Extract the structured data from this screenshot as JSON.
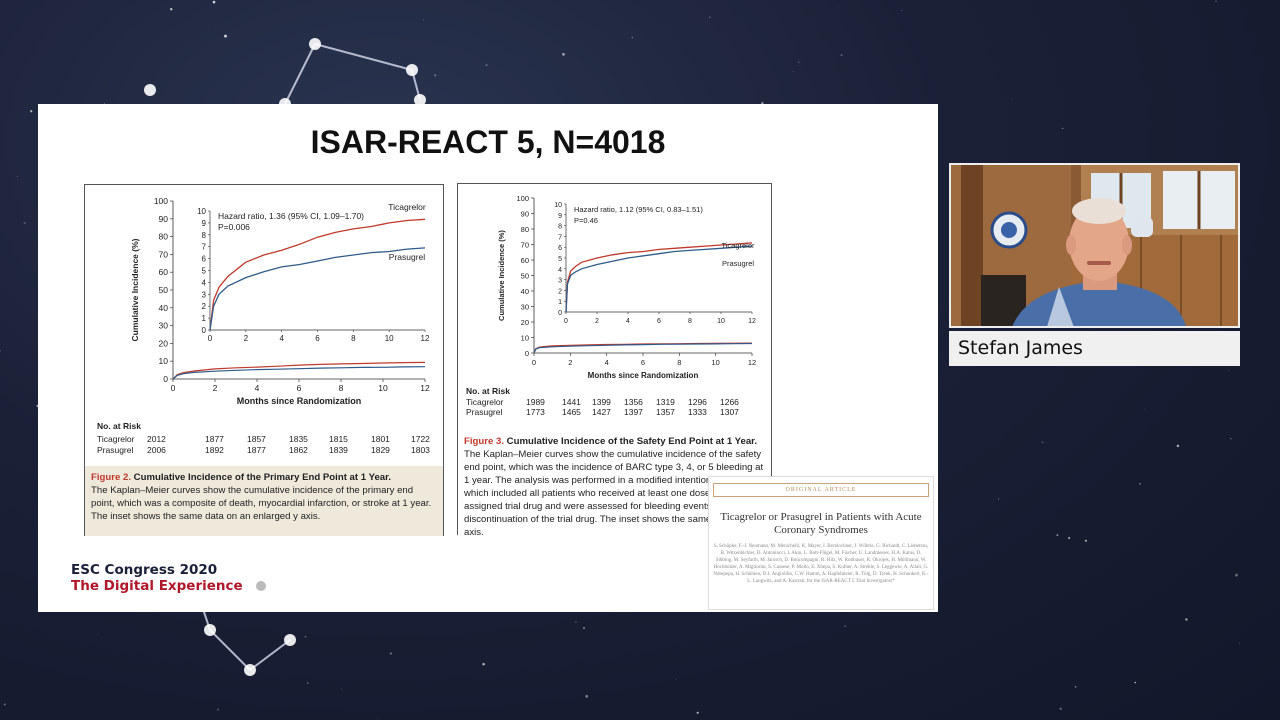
{
  "slide": {
    "title": "ISAR-REACT 5, N=4018",
    "esc_line1": "ESC Congress 2020",
    "esc_line2": "The Digital Experience"
  },
  "figure2": {
    "hazard": "Hazard ratio, 1.36 (95% CI, 1.09–1.70)",
    "p": "P=0.006",
    "series_a": "Ticagrelor",
    "series_b": "Prasugrel",
    "ylabel": "Cumulative Incidence (%)",
    "xlabel": "Months since Randomization",
    "y_ticks": [
      "0",
      "10",
      "20",
      "30",
      "40",
      "50",
      "60",
      "70",
      "80",
      "90",
      "100"
    ],
    "inset_y_ticks": [
      "0",
      "1",
      "2",
      "3",
      "4",
      "5",
      "6",
      "7",
      "8",
      "9",
      "10"
    ],
    "x_ticks": [
      "0",
      "2",
      "4",
      "6",
      "8",
      "10",
      "12"
    ],
    "risk_head": "No. at Risk",
    "risk": [
      {
        "label": "Ticagrelor",
        "values": [
          "2012",
          "1877",
          "1857",
          "1835",
          "1815",
          "1801",
          "1722"
        ]
      },
      {
        "label": "Prasugrel",
        "values": [
          "2006",
          "1892",
          "1877",
          "1862",
          "1839",
          "1829",
          "1803"
        ]
      }
    ],
    "cap_fig": "Figure 2.",
    "cap_title": "Cumulative Incidence of the Primary End Point at 1 Year.",
    "cap_text": "The Kaplan–Meier curves show the cumulative incidence of the primary end point, which was a composite of death, myocardial infarction, or stroke at 1 year. The inset shows the same data on an enlarged y axis."
  },
  "figure3": {
    "hazard": "Hazard ratio, 1.12 (95% CI, 0.83–1.51)",
    "p": "P=0.46",
    "series_a": "Ticagrelor",
    "series_b": "Prasugrel",
    "ylabel": "Cumulative Incidence (%)",
    "xlabel": "Months since Randomization",
    "y_ticks": [
      "0",
      "10",
      "20",
      "30",
      "40",
      "50",
      "60",
      "70",
      "80",
      "90",
      "100"
    ],
    "inset_y_ticks": [
      "0",
      "1",
      "2",
      "3",
      "4",
      "5",
      "6",
      "7",
      "8",
      "9",
      "10"
    ],
    "x_ticks": [
      "0",
      "2",
      "4",
      "6",
      "8",
      "10",
      "12"
    ],
    "risk_head": "No. at Risk",
    "risk": [
      {
        "label": "Ticagrelor",
        "values": [
          "1989",
          "1441",
          "1399",
          "1356",
          "1319",
          "1296",
          "1266"
        ]
      },
      {
        "label": "Prasugrel",
        "values": [
          "1773",
          "1465",
          "1427",
          "1397",
          "1357",
          "1333",
          "1307"
        ]
      }
    ],
    "cap_fig": "Figure 3.",
    "cap_title": "Cumulative Incidence of the Safety End Point at 1 Year.",
    "cap_text": "The Kaplan–Meier curves show the cumulative incidence of the safety end point, which was the incidence of BARC type 3, 4, or 5 bleeding at 1 year. The analysis was performed in a modified intention-to-treat p... which included all patients who received at least one dose of ... assigned trial drug and were assessed for bleeding events up t... discontinuation of the trial drug. The inset shows the same d... larged y axis."
  },
  "article": {
    "banner": "ORIGINAL ARTICLE",
    "title": "Ticagrelor or Prasugrel in Patients with Acute Coronary Syndromes",
    "authors": "S. Schüpke, F.-J. Neumann, M. Menichelli, K. Mayer, I. Bernlochner, J. Wöhrle, G. Richardt, C. Liebetrau, B. Witzenbichler, D. Antoniucci, I. Akin, L. Bott-Flügel, M. Fischer, U. Landmesser, H.A. Katus, D. Sibbing, M. Seyfarth, M. Janisch, D. Boncompagni, R. Hilz, W. Rottbauer, R. Okrojek, H. Möllmann, W. Hochholzer, A. Migliorini, S. Cassese, P. Mollo, E. Xhepa, S. Kufner, A. Strehle, S. Leggewie, A. Allali, G. Ndrepepa, H. Schühlen, D.J. Angiolillo, C.W. Hamm, A. Hapfelmeier, R. Tölg, D. Trenk, H. Schunkert, K.-L. Laugwitz, and A. Kastrati, for the ISAR-REACT 5 Trial Investigators*"
  },
  "speaker": {
    "name": "Stefan James"
  },
  "chart_data": [
    {
      "type": "line",
      "title": "Cumulative Incidence of the Primary End Point at 1 Year",
      "xlabel": "Months since Randomization",
      "ylabel": "Cumulative Incidence (%)",
      "xlim": [
        0,
        12
      ],
      "ylim": [
        0,
        100
      ],
      "inset_ylim": [
        0,
        10
      ],
      "series": [
        {
          "name": "Ticagrelor",
          "x": [
            0,
            0.2,
            0.5,
            1,
            2,
            3,
            4,
            5,
            6,
            7,
            8,
            9,
            10,
            11,
            12
          ],
          "values": [
            0,
            2.5,
            3.6,
            4.5,
            5.7,
            6.3,
            6.7,
            7.2,
            7.8,
            8.2,
            8.5,
            8.7,
            9.0,
            9.2,
            9.3
          ],
          "color": "#c0392b"
        },
        {
          "name": "Prasugrel",
          "x": [
            0,
            0.2,
            0.5,
            1,
            2,
            3,
            4,
            5,
            6,
            7,
            8,
            9,
            10,
            11,
            12
          ],
          "values": [
            0,
            2.0,
            3.0,
            3.7,
            4.4,
            4.9,
            5.3,
            5.5,
            5.8,
            6.1,
            6.3,
            6.5,
            6.6,
            6.8,
            6.9
          ],
          "color": "#2e5b8a"
        }
      ]
    },
    {
      "type": "line",
      "title": "Cumulative Incidence of the Safety End Point at 1 Year",
      "xlabel": "Months since Randomization",
      "ylabel": "Cumulative Incidence (%)",
      "xlim": [
        0,
        12
      ],
      "ylim": [
        0,
        100
      ],
      "inset_ylim": [
        0,
        10
      ],
      "series": [
        {
          "name": "Ticagrelor",
          "x": [
            0,
            0.1,
            0.3,
            0.6,
            1,
            2,
            3,
            4,
            5,
            6,
            7,
            8,
            9,
            10,
            11,
            12
          ],
          "values": [
            0,
            2.8,
            3.8,
            4.2,
            4.6,
            5.0,
            5.3,
            5.5,
            5.6,
            5.8,
            5.9,
            6.0,
            6.1,
            6.2,
            6.3,
            6.4
          ],
          "color": "#c0392b"
        },
        {
          "name": "Prasugrel",
          "x": [
            0,
            0.1,
            0.3,
            0.6,
            1,
            2,
            3,
            4,
            5,
            6,
            7,
            8,
            9,
            10,
            11,
            12
          ],
          "values": [
            0,
            2.6,
            3.4,
            3.7,
            4.0,
            4.4,
            4.7,
            5.0,
            5.2,
            5.4,
            5.6,
            5.7,
            5.8,
            5.9,
            6.0,
            6.1
          ],
          "color": "#2e5b8a"
        }
      ]
    }
  ]
}
